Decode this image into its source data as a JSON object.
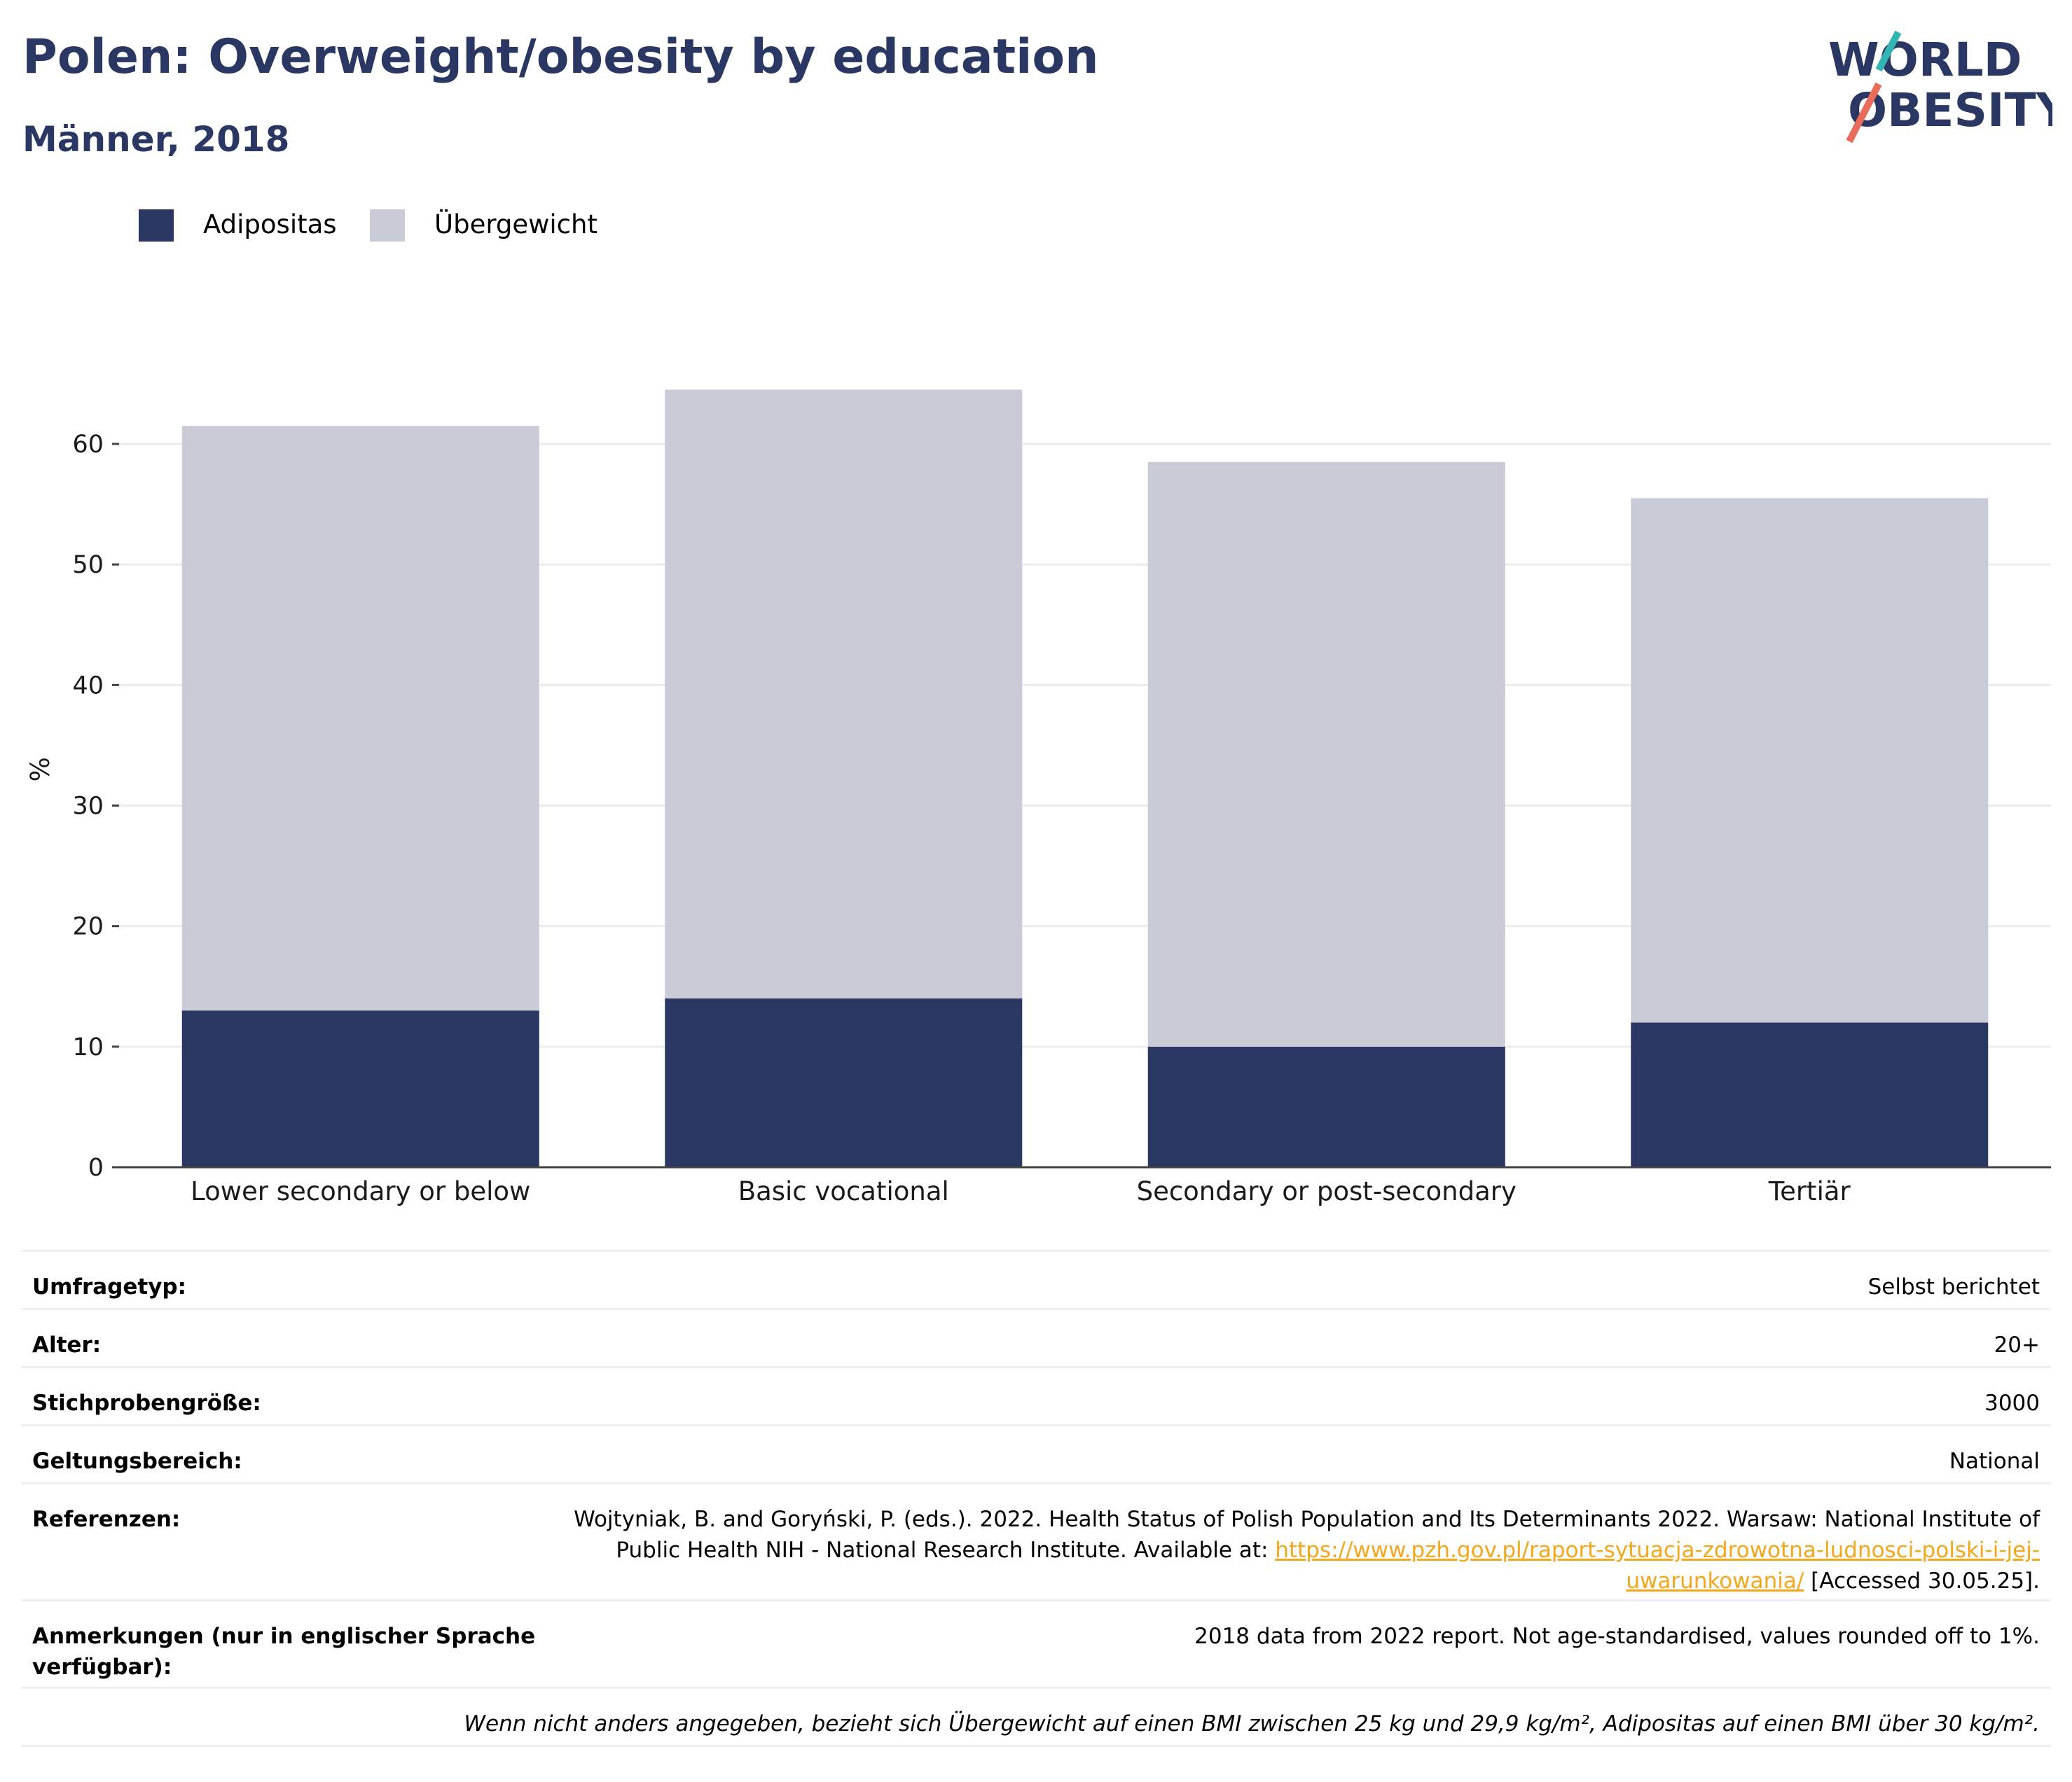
{
  "title": "Polen: Overweight/obesity by education",
  "subtitle": "Männer, 2018",
  "logo": {
    "line1": "WORLD",
    "line2": "OBESITY"
  },
  "legend": [
    {
      "label": "Adipositas",
      "color": "#2b3763"
    },
    {
      "label": "Übergewicht",
      "color": "#c9cbd7"
    }
  ],
  "chart_data": {
    "type": "bar",
    "stacked": true,
    "categories": [
      "Lower secondary or below",
      "Basic vocational",
      "Secondary or post-secondary",
      "Tertiär"
    ],
    "series": [
      {
        "name": "Adipositas",
        "color": "#2b3763",
        "values": [
          13,
          14,
          10,
          12
        ]
      },
      {
        "name": "Übergewicht",
        "color": "#c9cbd7",
        "values": [
          48.5,
          50.5,
          48.5,
          43.5
        ]
      }
    ],
    "ylabel": "%",
    "ylim": [
      0,
      66
    ],
    "yticks": [
      0,
      10,
      20,
      30,
      40,
      50,
      60
    ],
    "grid": true,
    "legend_position": "top-left"
  },
  "meta": [
    {
      "key": "Umfragetyp:",
      "value": "Selbst berichtet"
    },
    {
      "key": "Alter:",
      "value": "20+"
    },
    {
      "key": "Stichprobengröße:",
      "value": "3000"
    },
    {
      "key": "Geltungsbereich:",
      "value": "National"
    }
  ],
  "references": {
    "key": "Referenzen:",
    "line1": "Wojtyniak, B. and Goryński, P. (eds.). 2022. Health Status of Polish Population and Its Determinants 2022. Warsaw: National Institute of",
    "line2_prefix": "Public Health NIH - National Research Institute. Available at: ",
    "link_part1": "https://www.pzh.gov.pl/raport-sytuacja-zdrowotna-ludnosci-polski-i-jej-",
    "link_part2": "uwarunkowania/",
    "accessed": " [Accessed 30.05.25]."
  },
  "notes": {
    "key": "Anmerkungen (nur in englischer Sprache verfügbar):",
    "value": "2018 data from 2022 report. Not age-standardised, values rounded off to 1%."
  },
  "footnote": "Wenn nicht anders angegeben, bezieht sich Übergewicht auf einen BMI zwischen 25 kg und 29,9 kg/m², Adipositas auf einen BMI über 30 kg/m²."
}
